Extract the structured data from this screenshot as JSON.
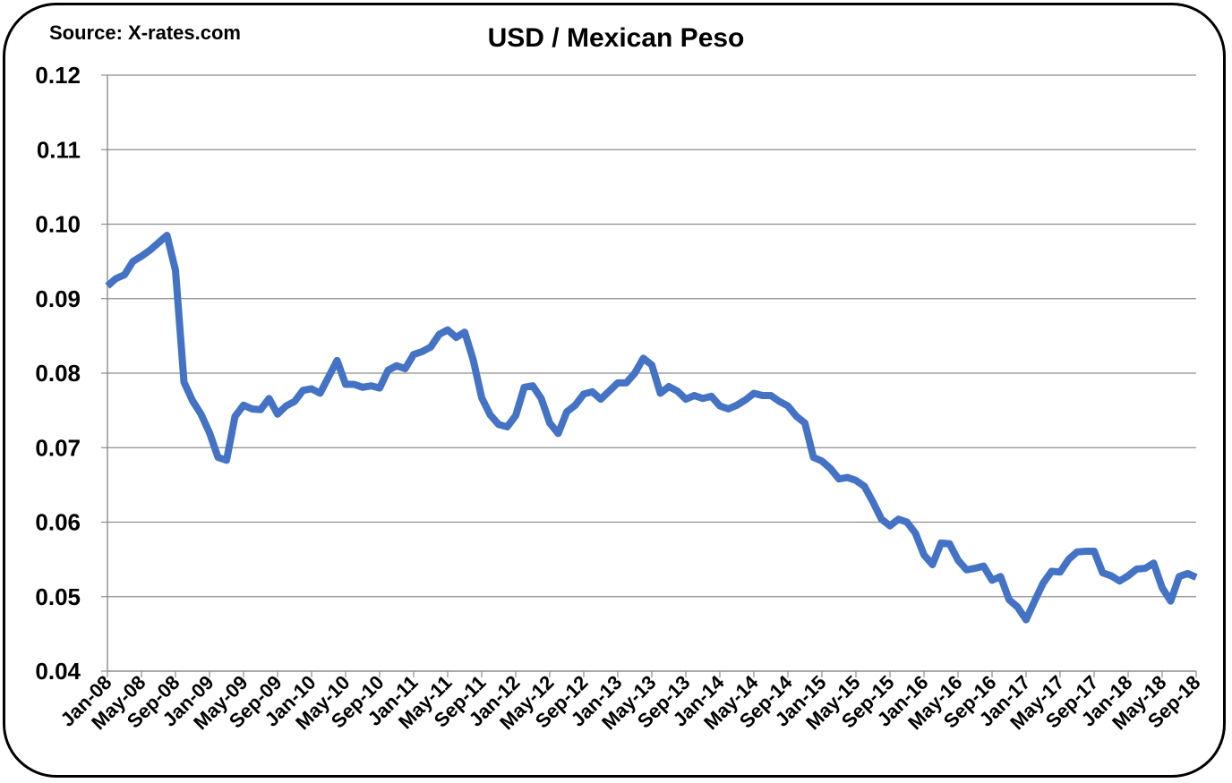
{
  "chart_data": {
    "type": "line",
    "title": "USD / Mexican Peso",
    "source": "Source: X-rates.com",
    "xlabel": "",
    "ylabel": "",
    "ylim": [
      0.04,
      0.12
    ],
    "yticks": [
      "0.04",
      "0.05",
      "0.06",
      "0.07",
      "0.08",
      "0.09",
      "0.10",
      "0.11",
      "0.12"
    ],
    "xtick_labels": [
      "Jan-08",
      "May-08",
      "Sep-08",
      "Jan-09",
      "May-09",
      "Sep-09",
      "Jan-10",
      "May-10",
      "Sep-10",
      "Jan-11",
      "May-11",
      "Sep-11",
      "Jan-12",
      "May-12",
      "Sep-12",
      "Jan-13",
      "May-13",
      "Sep-13",
      "Jan-14",
      "May-14",
      "Sep-14",
      "Jan-15",
      "May-15",
      "Sep-15",
      "Jan-16",
      "May-16",
      "Sep-16",
      "Jan-17",
      "May-17",
      "Sep-17",
      "Jan-18",
      "May-18",
      "Sep-18"
    ],
    "grid": true,
    "series": [
      {
        "color": "#4472C4",
        "start": "Jan-08",
        "frequency": "monthly",
        "values": [
          0.0917,
          0.0927,
          0.0932,
          0.095,
          0.0957,
          0.0965,
          0.0975,
          0.0985,
          0.0938,
          0.0788,
          0.0763,
          0.0745,
          0.072,
          0.0687,
          0.0683,
          0.0742,
          0.0757,
          0.0752,
          0.0751,
          0.0766,
          0.0745,
          0.0756,
          0.0762,
          0.0777,
          0.0779,
          0.0773,
          0.0795,
          0.0817,
          0.0785,
          0.0785,
          0.0781,
          0.0783,
          0.078,
          0.0804,
          0.081,
          0.0806,
          0.0825,
          0.0829,
          0.0835,
          0.0852,
          0.0858,
          0.0848,
          0.0855,
          0.0818,
          0.0767,
          0.0744,
          0.0731,
          0.0728,
          0.0743,
          0.0781,
          0.0783,
          0.0766,
          0.0733,
          0.0719,
          0.0748,
          0.0757,
          0.0772,
          0.0775,
          0.0765,
          0.0776,
          0.0787,
          0.0787,
          0.08,
          0.082,
          0.0811,
          0.0773,
          0.0782,
          0.0776,
          0.0765,
          0.077,
          0.0766,
          0.0769,
          0.0756,
          0.0752,
          0.0757,
          0.0764,
          0.0773,
          0.077,
          0.077,
          0.0762,
          0.0756,
          0.0742,
          0.0733,
          0.0687,
          0.0682,
          0.0672,
          0.0658,
          0.066,
          0.0656,
          0.0648,
          0.0627,
          0.0604,
          0.0595,
          0.0604,
          0.06,
          0.0585,
          0.0556,
          0.0543,
          0.0572,
          0.0571,
          0.0549,
          0.0536,
          0.0538,
          0.0541,
          0.0522,
          0.0527,
          0.0496,
          0.0486,
          0.0469,
          0.0494,
          0.0518,
          0.0534,
          0.0533,
          0.055,
          0.056,
          0.0561,
          0.0561,
          0.0532,
          0.0528,
          0.0521,
          0.0528,
          0.0537,
          0.0538,
          0.0545,
          0.0512,
          0.0494,
          0.0527,
          0.0531,
          0.0526
        ]
      }
    ]
  }
}
